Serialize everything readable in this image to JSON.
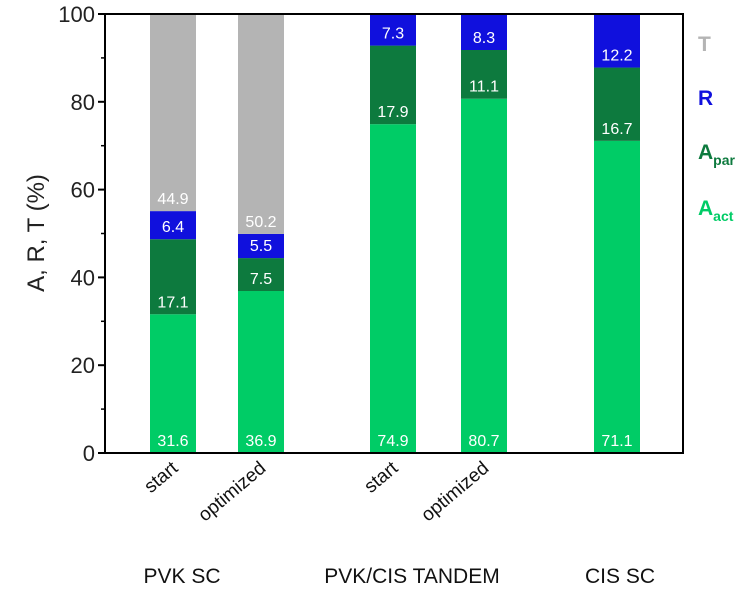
{
  "chart_data": {
    "type": "bar",
    "stacked": true,
    "ylabel": "A, R, T (%)",
    "ylim": [
      0,
      100
    ],
    "yticks": [
      0,
      20,
      40,
      60,
      80,
      100
    ],
    "grid": false,
    "legend_position": "right",
    "categories": [
      "start",
      "optimized",
      "start",
      "optimized",
      ""
    ],
    "groups": [
      {
        "label": "PVK SC",
        "categories": [
          0,
          1
        ]
      },
      {
        "label": "PVK/CIS TANDEM",
        "categories": [
          2,
          3
        ]
      },
      {
        "label": "CIS SC",
        "categories": [
          4
        ]
      }
    ],
    "series": [
      {
        "key": "Aact",
        "legend_main": "A",
        "legend_sub": "act",
        "color": "#00cc66",
        "label_color": "#ffffff",
        "values": [
          31.6,
          36.9,
          74.9,
          80.7,
          71.1
        ]
      },
      {
        "key": "Apar",
        "legend_main": "A",
        "legend_sub": "par",
        "color": "#0d7a3e",
        "label_color": "#ffffff",
        "values": [
          17.1,
          7.5,
          17.9,
          11.1,
          16.7
        ]
      },
      {
        "key": "R",
        "legend_main": "R",
        "legend_sub": "",
        "color": "#1010dd",
        "label_color": "#ffffff",
        "values": [
          6.4,
          5.5,
          7.3,
          8.3,
          12.2
        ]
      },
      {
        "key": "T",
        "legend_main": "T",
        "legend_sub": "",
        "color": "#b4b4b4",
        "label_color": "#ffffff",
        "values": [
          44.9,
          50.2,
          null,
          null,
          null
        ]
      }
    ],
    "legend_order": [
      "T",
      "R",
      "Apar",
      "Aact"
    ]
  }
}
